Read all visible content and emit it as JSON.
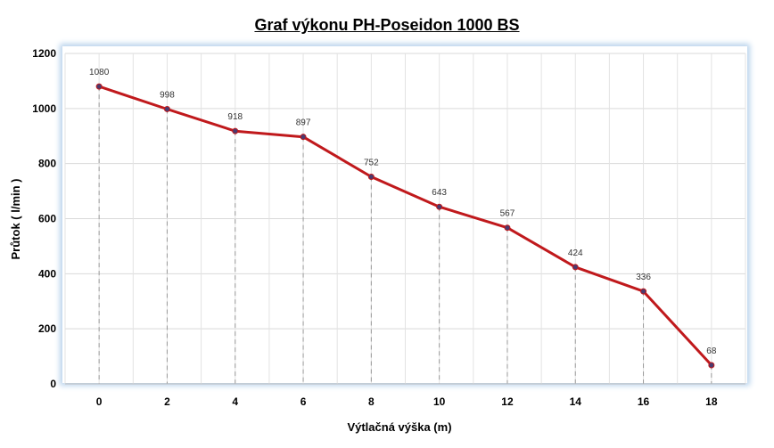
{
  "chart_data": {
    "type": "line",
    "title": "Graf výkonu PH-Poseidon 1000 BS",
    "xlabel": "Výtlačná výška (m)",
    "ylabel": "Průtok ( l/min )",
    "x": [
      0,
      2,
      4,
      6,
      8,
      10,
      12,
      14,
      16,
      18
    ],
    "series": [
      {
        "values": [
          1080,
          998,
          918,
          897,
          752,
          643,
          567,
          424,
          336,
          68
        ],
        "color": "#c0191c",
        "marker_color": "#4b3a6e"
      }
    ],
    "data_labels": [
      "1080",
      "998",
      "918",
      "897",
      "752",
      "643",
      "567",
      "424",
      "336",
      "68"
    ],
    "xticks": [
      "0",
      "2",
      "4",
      "6",
      "8",
      "10",
      "12",
      "14",
      "16",
      "18"
    ],
    "yticks": [
      "0",
      "200",
      "400",
      "600",
      "800",
      "1000",
      "1200"
    ],
    "xlim": [
      -1,
      19
    ],
    "ylim": [
      0,
      1200
    ],
    "grid": true,
    "drop_lines": true,
    "legend": "none"
  }
}
